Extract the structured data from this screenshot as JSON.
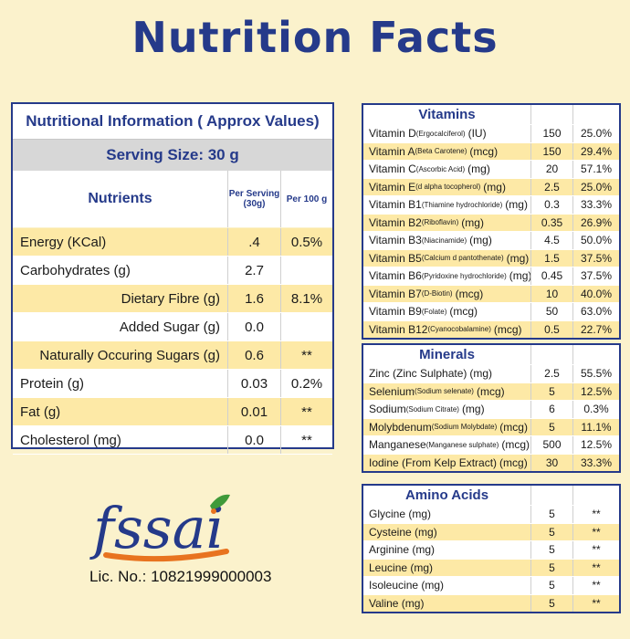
{
  "title": "Nutrition Facts",
  "main": {
    "heading": "Nutritional Information ( Approx Values)",
    "serving": "Serving Size: 30 g",
    "col_nutrients": "Nutrients",
    "col_serving": "Per Serving (30g)",
    "col_100g": "Per 100 g",
    "rows": [
      {
        "name": "Energy (KCal)",
        "serving": ".4",
        "per100": "0.5%"
      },
      {
        "name": "Carbohydrates (g)",
        "serving": "2.7",
        "per100": ""
      },
      {
        "name": "Dietary Fibre (g)",
        "serving": "1.6",
        "per100": "8.1%"
      },
      {
        "name": "Added Sugar (g)",
        "serving": "0.0",
        "per100": ""
      },
      {
        "name": "Naturally Occuring Sugars (g)",
        "serving": "0.6",
        "per100": "**"
      },
      {
        "name": "Protein (g)",
        "serving": "0.03",
        "per100": "0.2%"
      },
      {
        "name": "Fat (g)",
        "serving": "0.01",
        "per100": "**"
      },
      {
        "name": "Cholesterol (mg)",
        "serving": "0.0",
        "per100": "**"
      }
    ]
  },
  "vitamins": {
    "heading": "Vitamins",
    "rows": [
      {
        "name": "Vitamin D",
        "sub": "(Ergocalciferol)",
        "unit": "(IU)",
        "value": "150",
        "pct": "25.0%"
      },
      {
        "name": "Vitamin A",
        "sub": "(Beta Carotene)",
        "unit": "(mcg)",
        "value": "150",
        "pct": "29.4%"
      },
      {
        "name": "Vitamin C",
        "sub": "(Ascorbic Acid)",
        "unit": "(mg)",
        "value": "20",
        "pct": "57.1%"
      },
      {
        "name": "Vitamin E",
        "sub": "(d alpha tocopherol)",
        "unit": "(mg)",
        "value": "2.5",
        "pct": "25.0%"
      },
      {
        "name": "Vitamin B1",
        "sub": "(Thiamine hydrochloride)",
        "unit": "(mg)",
        "value": "0.3",
        "pct": "33.3%"
      },
      {
        "name": "Vitamin B2",
        "sub": "(Riboflavin)",
        "unit": "(mg)",
        "value": "0.35",
        "pct": "26.9%"
      },
      {
        "name": "Vitamin B3",
        "sub": "(Niacinamide)",
        "unit": "(mg)",
        "value": "4.5",
        "pct": "50.0%"
      },
      {
        "name": "Vitamin B5",
        "sub": "(Calcium d pantothenate)",
        "unit": "(mg)",
        "value": "1.5",
        "pct": "37.5%"
      },
      {
        "name": "Vitamin B6",
        "sub": "(Pyridoxine hydrochloride)",
        "unit": "(mg)",
        "value": "0.45",
        "pct": "37.5%"
      },
      {
        "name": "Vitamin B7",
        "sub": "(D-Biotin)",
        "unit": "(mcg)",
        "value": "10",
        "pct": "40.0%"
      },
      {
        "name": "Vitamin B9",
        "sub": "(Folate)",
        "unit": "(mcg)",
        "value": "50",
        "pct": "63.0%"
      },
      {
        "name": "Vitamin B12",
        "sub": "(Cyanocobalamine)",
        "unit": "(mcg)",
        "value": "0.5",
        "pct": "22.7%"
      }
    ]
  },
  "minerals": {
    "heading": "Minerals",
    "rows": [
      {
        "name": "Zinc (Zinc Sulphate)",
        "sub": "",
        "unit": "(mg)",
        "value": "2.5",
        "pct": "55.5%"
      },
      {
        "name": "Selenium",
        "sub": "(Sodium selenate)",
        "unit": "(mcg)",
        "value": "5",
        "pct": "12.5%"
      },
      {
        "name": "Sodium",
        "sub": "(Sodium Citrate)",
        "unit": "(mg)",
        "value": "6",
        "pct": "0.3%"
      },
      {
        "name": "Molybdenum",
        "sub": "(Sodium Molybdate)",
        "unit": "(mcg)",
        "value": "5",
        "pct": "11.1%"
      },
      {
        "name": "Manganese",
        "sub": "(Manganese sulphate)",
        "unit": "(mcg)",
        "value": "500",
        "pct": "12.5%"
      },
      {
        "name": "Iodine (From Kelp Extract)",
        "sub": "",
        "unit": "(mcg)",
        "value": "30",
        "pct": "33.3%"
      }
    ]
  },
  "amino": {
    "heading": "Amino Acids",
    "rows": [
      {
        "name": "Glycine (mg)",
        "sub": "",
        "unit": "",
        "value": "5",
        "pct": "**"
      },
      {
        "name": "Cysteine (mg)",
        "sub": "",
        "unit": "",
        "value": "5",
        "pct": "**"
      },
      {
        "name": "Arginine (mg)",
        "sub": "",
        "unit": "",
        "value": "5",
        "pct": "**"
      },
      {
        "name": "Leucine (mg)",
        "sub": "",
        "unit": "",
        "value": "5",
        "pct": "**"
      },
      {
        "name": "Isoleucine (mg)",
        "sub": "",
        "unit": "",
        "value": "5",
        "pct": "**"
      },
      {
        "name": "Valine (mg)",
        "sub": "",
        "unit": "",
        "value": "5",
        "pct": "**"
      }
    ]
  },
  "logo": {
    "text": "fssai",
    "name": "fssai-logo"
  },
  "license": "Lic. No.: 10821999000003",
  "colors": {
    "navy": "#253a8a",
    "cream": "#fbf2cc",
    "band": "#fde9a6",
    "orange": "#e8731f",
    "green": "#3f9a3a"
  }
}
